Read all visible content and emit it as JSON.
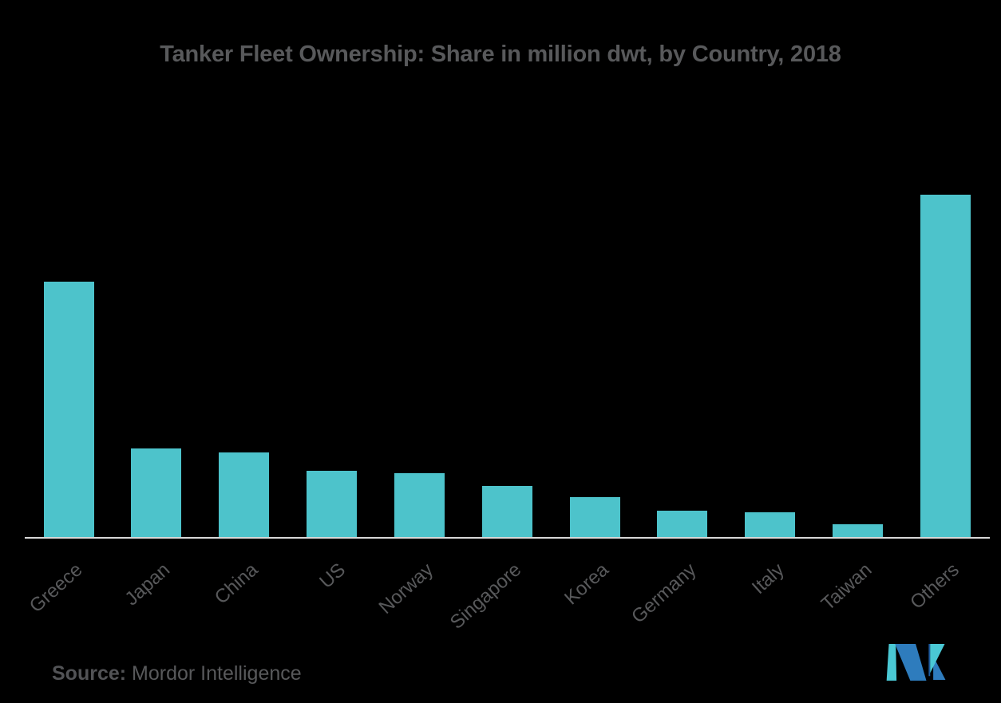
{
  "page": {
    "background_color": "#000000"
  },
  "chart_data": {
    "type": "bar",
    "title": "Tanker Fleet Ownership: Share in million dwt, by Country, 2018",
    "categories": [
      "Greece",
      "Japan",
      "China",
      "US",
      "Norway",
      "Singapore",
      "Korea",
      "Germany",
      "Italy",
      "Taiwan",
      "Others"
    ],
    "values": [
      96.4,
      33.6,
      32.1,
      25.2,
      24.3,
      19.5,
      15.3,
      10.2,
      9.6,
      5.1,
      129.2
    ],
    "xlabel": "",
    "ylabel": "",
    "ylim": [
      0,
      140
    ],
    "grid": false,
    "legend": false,
    "y_axis_shown": false,
    "bar_color": "#4DC3CB",
    "axis_line_color": "#D8D8D8",
    "label_color": "#58595B",
    "title_color": "#58595B"
  },
  "source": {
    "label": "Source:",
    "value": "Mordor Intelligence"
  },
  "logo": {
    "name": "Mordor Intelligence logo mark",
    "teal": "#4AC8D4",
    "blue": "#2E7CBD",
    "dark_blue": "#1C5A9E"
  }
}
